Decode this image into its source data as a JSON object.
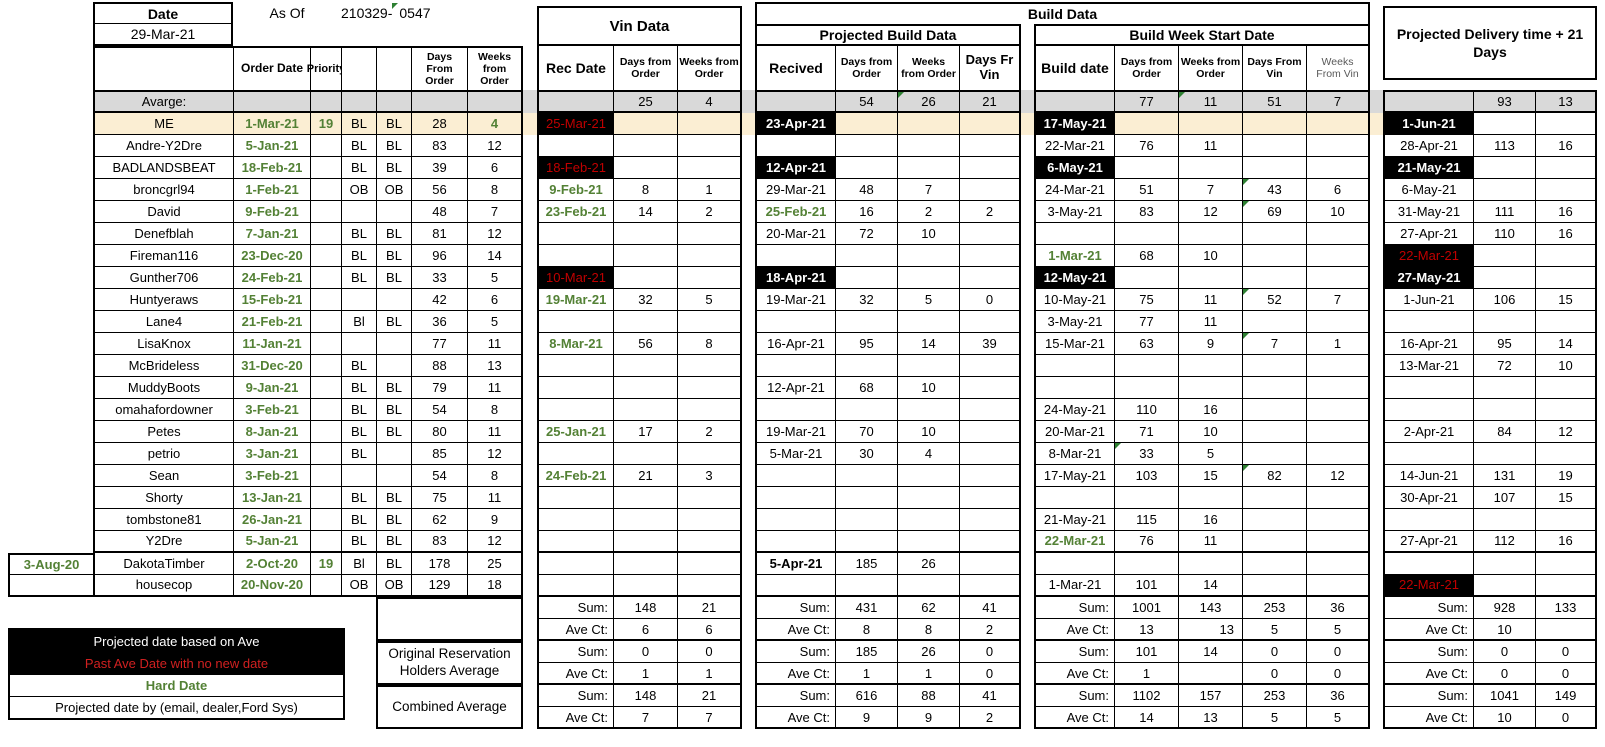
{
  "meta": {
    "date_label": "Date",
    "date_value": "29-Mar-21",
    "as_of_label": "As Of",
    "as_of_value": "210329-",
    "as_of_frag": "0547"
  },
  "titles": {
    "vin": "Vin Data",
    "build": "Build Data",
    "projected_build": "Projected Build Data",
    "build_week": "Build Week Start Date",
    "delivery": "Projected Delivery time + 21 Days"
  },
  "col_headers": {
    "order_date": "Order Date",
    "priority": "Priority",
    "days_from_order": "Days From Order",
    "weeks_from_order": "Weeks from Order",
    "rec_date": "Rec Date",
    "vin_days": "Days from Order",
    "vin_weeks": "Weeks from Order",
    "recived": "Recived",
    "pb_days": "Days from Order",
    "pb_weeks": "Weeks from Order",
    "pb_dfv": "Days Fr Vin",
    "build_date": "Build date",
    "bw_days": "Days from Order",
    "bw_weeks": "Weeks from Order",
    "bw_dv": "Days From Vin",
    "bw_wv": "Weeks From Vin"
  },
  "average": {
    "label": "Avarge:",
    "vin_days": "25",
    "vin_weeks": "4",
    "pb_days": "54",
    "pb_weeks": "26",
    "pb_dfv": "21",
    "bw_days": "77",
    "bw_weeks": "11",
    "bw_dv": "51",
    "bw_wv": "7",
    "del_days": "93",
    "del_weeks": "13"
  },
  "colors": {
    "hard_date_green": "#538135",
    "past_date_red": "#c00000",
    "average_row_gray": "#d9d9d9",
    "highlight_tan": "#fbeed3",
    "projected_black": "#000000"
  },
  "rows": [
    {
      "hl": "tan",
      "left": "",
      "name": "ME",
      "order_date": "1-Mar-21",
      "priority": "19",
      "bl1": "BL",
      "bl2": "BL",
      "days": "28",
      "weeks": "4",
      "green": [
        "weeks"
      ],
      "rec": "25-Mar-21",
      "rec_s": "past",
      "vdays": "",
      "vweeks": "",
      "pb": "23-Apr-21",
      "pb_s": "ave",
      "pbdays": "",
      "pbweeks": "",
      "pbdfv": "",
      "bw": "17-May-21",
      "bw_s": "ave",
      "bwdays": "",
      "bwweeks": "",
      "bwdv": "",
      "bwwv": "",
      "del": "1-Jun-21",
      "del_s": "ave",
      "deldays": "",
      "delweeks": ""
    },
    {
      "left": "",
      "name": "Andre-Y2Dre",
      "order_date": "5-Jan-21",
      "priority": "",
      "bl1": "BL",
      "bl2": "BL",
      "days": "83",
      "weeks": "12",
      "rec": "",
      "vdays": "",
      "vweeks": "",
      "pb": "",
      "pbdays": "",
      "pbweeks": "",
      "pbdfv": "",
      "bw": "22-Mar-21",
      "bw_s": "plain",
      "bwdays": "76",
      "bwweeks": "11",
      "bwdv": "",
      "bwwv": "",
      "del": "28-Apr-21",
      "del_s": "plain",
      "deldays": "113",
      "delweeks": "16"
    },
    {
      "left": "",
      "name": "BADLANDSBEAT",
      "order_date": "18-Feb-21",
      "priority": "",
      "bl1": "BL",
      "bl2": "BL",
      "days": "39",
      "weeks": "6",
      "rec": "18-Feb-21",
      "rec_s": "past",
      "vdays": "",
      "vweeks": "",
      "pb": "12-Apr-21",
      "pb_s": "ave",
      "pbdays": "",
      "pbweeks": "",
      "pbdfv": "",
      "bw": "6-May-21",
      "bw_s": "ave",
      "bwdays": "",
      "bwweeks": "",
      "bwdv": "",
      "bwwv": "",
      "del": "21-May-21",
      "del_s": "ave",
      "deldays": "",
      "delweeks": ""
    },
    {
      "left": "",
      "name": "broncgrl94",
      "order_date": "1-Feb-21",
      "priority": "",
      "bl1": "OB",
      "bl2": "OB",
      "days": "56",
      "weeks": "8",
      "rec": "9-Feb-21",
      "rec_s": "hard",
      "vdays": "8",
      "vweeks": "1",
      "pb": "29-Mar-21",
      "pb_s": "plain",
      "pbdays": "48",
      "pbweeks": "7",
      "pbdfv": "",
      "bw": "24-Mar-21",
      "bw_s": "plain",
      "bwdays": "51",
      "bwweeks": "7",
      "bwdv": "43",
      "bwwv": "6",
      "flags": [
        "bwdv"
      ],
      "del": "6-May-21",
      "del_s": "plain",
      "deldays": "",
      "delweeks": ""
    },
    {
      "left": "",
      "name": "David",
      "order_date": "9-Feb-21",
      "priority": "",
      "bl1": "",
      "bl2": "",
      "days": "48",
      "weeks": "7",
      "rec": "23-Feb-21",
      "rec_s": "hard",
      "vdays": "14",
      "vweeks": "2",
      "pb": "25-Feb-21",
      "pb_s": "hard",
      "pbdays": "16",
      "pbweeks": "2",
      "pbdfv": "2",
      "bw": "3-May-21",
      "bw_s": "plain",
      "bwdays": "83",
      "bwweeks": "12",
      "bwdv": "69",
      "bwwv": "10",
      "flags": [
        "bwdv"
      ],
      "del": "31-May-21",
      "del_s": "plain",
      "deldays": "111",
      "delweeks": "16"
    },
    {
      "left": "",
      "name": "Denefblah",
      "order_date": "7-Jan-21",
      "priority": "",
      "bl1": "BL",
      "bl2": "BL",
      "days": "81",
      "weeks": "12",
      "rec": "",
      "vdays": "",
      "vweeks": "",
      "pb": "20-Mar-21",
      "pb_s": "plain",
      "pbdays": "72",
      "pbweeks": "10",
      "pbdfv": "",
      "bw": "",
      "bwdays": "",
      "bwweeks": "",
      "bwdv": "",
      "bwwv": "",
      "del": "27-Apr-21",
      "del_s": "plain",
      "deldays": "110",
      "delweeks": "16"
    },
    {
      "left": "",
      "name": "Fireman116",
      "order_date": "23-Dec-20",
      "priority": "",
      "bl1": "BL",
      "bl2": "BL",
      "days": "96",
      "weeks": "14",
      "rec": "",
      "vdays": "",
      "vweeks": "",
      "pb": "",
      "pbdays": "",
      "pbweeks": "",
      "pbdfv": "",
      "bw": "1-Mar-21",
      "bw_s": "hard",
      "bwdays": "68",
      "bwweeks": "10",
      "bwdv": "",
      "bwwv": "",
      "del": "22-Mar-21",
      "del_s": "past",
      "deldays": "",
      "delweeks": ""
    },
    {
      "left": "",
      "name": "Gunther706",
      "order_date": "24-Feb-21",
      "priority": "",
      "bl1": "BL",
      "bl2": "BL",
      "days": "33",
      "weeks": "5",
      "rec": "10-Mar-21",
      "rec_s": "past",
      "vdays": "",
      "vweeks": "",
      "pb": "18-Apr-21",
      "pb_s": "ave",
      "pbdays": "",
      "pbweeks": "",
      "pbdfv": "",
      "bw": "12-May-21",
      "bw_s": "ave",
      "bwdays": "",
      "bwweeks": "",
      "bwdv": "",
      "bwwv": "",
      "del": "27-May-21",
      "del_s": "ave",
      "deldays": "",
      "delweeks": ""
    },
    {
      "left": "",
      "name": "Huntyeraws",
      "order_date": "15-Feb-21",
      "priority": "",
      "bl1": "",
      "bl2": "",
      "days": "42",
      "weeks": "6",
      "rec": "19-Mar-21",
      "rec_s": "hard",
      "vdays": "32",
      "vweeks": "5",
      "pb": "19-Mar-21",
      "pb_s": "plain",
      "pbdays": "32",
      "pbweeks": "5",
      "pbdfv": "0",
      "bw": "10-May-21",
      "bw_s": "plain",
      "bwdays": "75",
      "bwweeks": "11",
      "bwdv": "52",
      "bwwv": "7",
      "flags": [
        "bwdv"
      ],
      "del": "1-Jun-21",
      "del_s": "plain",
      "deldays": "106",
      "delweeks": "15"
    },
    {
      "left": "",
      "name": "Lane4",
      "order_date": "21-Feb-21",
      "priority": "",
      "bl1": "Bl",
      "bl2": "BL",
      "days": "36",
      "weeks": "5",
      "rec": "",
      "vdays": "",
      "vweeks": "",
      "pb": "",
      "pbdays": "",
      "pbweeks": "",
      "pbdfv": "",
      "bw": "3-May-21",
      "bw_s": "plain",
      "bwdays": "77",
      "bwweeks": "11",
      "bwdv": "",
      "bwwv": "",
      "del": "",
      "deldays": "",
      "delweeks": ""
    },
    {
      "left": "",
      "name": "LisaKnox",
      "order_date": "11-Jan-21",
      "priority": "",
      "bl1": "",
      "bl2": "",
      "days": "77",
      "weeks": "11",
      "rec": "8-Mar-21",
      "rec_s": "hard",
      "vdays": "56",
      "vweeks": "8",
      "pb": "16-Apr-21",
      "pb_s": "plain",
      "pbdays": "95",
      "pbweeks": "14",
      "pbdfv": "39",
      "bw": "15-Mar-21",
      "bw_s": "plain",
      "bwdays": "63",
      "bwweeks": "9",
      "bwdv": "7",
      "bwwv": "1",
      "flags": [
        "bwdv"
      ],
      "del": "16-Apr-21",
      "del_s": "plain",
      "deldays": "95",
      "delweeks": "14"
    },
    {
      "left": "",
      "name": "McBrideless",
      "order_date": "31-Dec-20",
      "priority": "",
      "bl1": "BL",
      "bl2": "",
      "days": "88",
      "weeks": "13",
      "rec": "",
      "vdays": "",
      "vweeks": "",
      "pb": "",
      "pbdays": "",
      "pbweeks": "",
      "pbdfv": "",
      "bw": "",
      "bwdays": "",
      "bwweeks": "",
      "bwdv": "",
      "bwwv": "",
      "del": "13-Mar-21",
      "del_s": "plain",
      "deldays": "72",
      "delweeks": "10"
    },
    {
      "left": "",
      "name": "MuddyBoots",
      "order_date": "9-Jan-21",
      "priority": "",
      "bl1": "BL",
      "bl2": "BL",
      "days": "79",
      "weeks": "11",
      "rec": "",
      "vdays": "",
      "vweeks": "",
      "pb": "12-Apr-21",
      "pb_s": "plain",
      "pbdays": "68",
      "pbweeks": "10",
      "pbdfv": "",
      "bw": "",
      "bwdays": "",
      "bwweeks": "",
      "bwdv": "",
      "bwwv": "",
      "del": "",
      "deldays": "",
      "delweeks": ""
    },
    {
      "left": "",
      "name": "omahafordowner",
      "order_date": "3-Feb-21",
      "priority": "",
      "bl1": "BL",
      "bl2": "BL",
      "days": "54",
      "weeks": "8",
      "rec": "",
      "vdays": "",
      "vweeks": "",
      "pb": "",
      "pbdays": "",
      "pbweeks": "",
      "pbdfv": "",
      "bw": "24-May-21",
      "bw_s": "plain",
      "bwdays": "110",
      "bwweeks": "16",
      "bwdv": "",
      "bwwv": "",
      "del": "",
      "deldays": "",
      "delweeks": ""
    },
    {
      "left": "",
      "name": "Petes",
      "order_date": "8-Jan-21",
      "priority": "",
      "bl1": "BL",
      "bl2": "BL",
      "days": "80",
      "weeks": "11",
      "rec": "25-Jan-21",
      "rec_s": "hard",
      "vdays": "17",
      "vweeks": "2",
      "pb": "19-Mar-21",
      "pb_s": "plain",
      "pbdays": "70",
      "pbweeks": "10",
      "pbdfv": "",
      "bw": "20-Mar-21",
      "bw_s": "plain",
      "bwdays": "71",
      "bwweeks": "10",
      "bwdv": "",
      "bwwv": "",
      "del": "2-Apr-21",
      "del_s": "plain",
      "deldays": "84",
      "delweeks": "12"
    },
    {
      "left": "",
      "name": "petrio",
      "order_date": "3-Jan-21",
      "priority": "",
      "bl1": "BL",
      "bl2": "",
      "days": "85",
      "weeks": "12",
      "rec": "",
      "vdays": "",
      "vweeks": "",
      "pb": "5-Mar-21",
      "pb_s": "plain",
      "pbdays": "30",
      "pbweeks": "4",
      "pbdfv": "",
      "bw": "8-Mar-21",
      "bw_s": "plain",
      "bwdays": "33",
      "bwweeks": "5",
      "bwdv": "",
      "bwwv": "",
      "flags": [
        "bwdays"
      ],
      "del": "",
      "deldays": "",
      "delweeks": ""
    },
    {
      "left": "",
      "name": "Sean",
      "order_date": "3-Feb-21",
      "priority": "",
      "bl1": "",
      "bl2": "",
      "days": "54",
      "weeks": "8",
      "rec": "24-Feb-21",
      "rec_s": "hard",
      "vdays": "21",
      "vweeks": "3",
      "pb": "",
      "pbdays": "",
      "pbweeks": "",
      "pbdfv": "",
      "bw": "17-May-21",
      "bw_s": "plain",
      "bwdays": "103",
      "bwweeks": "15",
      "bwdv": "82",
      "bwwv": "12",
      "flags": [
        "bwdv"
      ],
      "del": "14-Jun-21",
      "del_s": "plain",
      "deldays": "131",
      "delweeks": "19"
    },
    {
      "left": "",
      "name": "Shorty",
      "order_date": "13-Jan-21",
      "priority": "",
      "bl1": "BL",
      "bl2": "BL",
      "days": "75",
      "weeks": "11",
      "rec": "",
      "vdays": "",
      "vweeks": "",
      "pb": "",
      "pbdays": "",
      "pbweeks": "",
      "pbdfv": "",
      "bw": "",
      "bwdays": "",
      "bwweeks": "",
      "bwdv": "",
      "bwwv": "",
      "del": "30-Apr-21",
      "del_s": "plain",
      "deldays": "107",
      "delweeks": "15"
    },
    {
      "left": "",
      "name": "tombstone81",
      "order_date": "26-Jan-21",
      "priority": "",
      "bl1": "BL",
      "bl2": "BL",
      "days": "62",
      "weeks": "9",
      "rec": "",
      "vdays": "",
      "vweeks": "",
      "pb": "",
      "pbdays": "",
      "pbweeks": "",
      "pbdfv": "",
      "bw": "21-May-21",
      "bw_s": "plain",
      "bwdays": "115",
      "bwweeks": "16",
      "bwdv": "",
      "bwwv": "",
      "del": "",
      "deldays": "",
      "delweeks": ""
    },
    {
      "left": "",
      "name": "Y2Dre",
      "order_date": "5-Jan-21",
      "priority": "",
      "bl1": "BL",
      "bl2": "BL",
      "days": "83",
      "weeks": "12",
      "tb": true,
      "rec": "",
      "vdays": "",
      "vweeks": "",
      "pb": "",
      "pbdays": "",
      "pbweeks": "",
      "pbdfv": "",
      "bw": "22-Mar-21",
      "bw_s": "hard",
      "bwdays": "76",
      "bwweeks": "11",
      "bwdv": "",
      "bwwv": "",
      "del": "27-Apr-21",
      "del_s": "plain",
      "deldays": "112",
      "delweeks": "16"
    },
    {
      "left": "3-Aug-20",
      "left_box": true,
      "left_top": true,
      "name": "DakotaTimber",
      "order_date": "2-Oct-20",
      "priority": "19",
      "bl1": "Bl",
      "bl2": "BL",
      "days": "178",
      "weeks": "25",
      "rec": "",
      "vdays": "",
      "vweeks": "",
      "pb": "5-Apr-21",
      "pb_s": "bold",
      "pbdays": "185",
      "pbweeks": "26",
      "pbdfv": "",
      "bw": "",
      "bwdays": "",
      "bwweeks": "",
      "bwdv": "",
      "bwwv": "",
      "del": "",
      "deldays": "",
      "delweeks": ""
    },
    {
      "left": "",
      "left_box": true,
      "name": "housecop",
      "order_date": "20-Nov-20",
      "priority": "",
      "bl1": "OB",
      "bl2": "OB",
      "days": "129",
      "weeks": "18",
      "tb": true,
      "rec": "",
      "vdays": "",
      "vweeks": "",
      "pb": "",
      "pbdays": "",
      "pbweeks": "",
      "pbdfv": "",
      "bw": "1-Mar-21",
      "bw_s": "plain",
      "bwdays": "101",
      "bwweeks": "14",
      "bwdv": "",
      "bwwv": "",
      "del": "22-Mar-21",
      "del_s": "past",
      "deldays": "",
      "delweeks": ""
    }
  ],
  "summary": {
    "groups": [
      {
        "label": "",
        "rows": [
          {
            "label": "Sum:",
            "vin": [
              "148",
              "21"
            ],
            "pb": [
              "431",
              "62",
              "41"
            ],
            "bw": [
              "1001",
              "143",
              "253",
              "36"
            ],
            "del": [
              "928",
              "133"
            ]
          },
          {
            "label": "Ave Ct:",
            "vin": [
              "6",
              "6"
            ],
            "pb": [
              "8",
              "8",
              "2"
            ],
            "bw": [
              "13",
              "13",
              "5",
              "5"
            ],
            "del": [
              "10",
              ""
            ]
          }
        ]
      },
      {
        "label": "Original Reservation Holders Average",
        "rows": [
          {
            "label": "Sum:",
            "vin": [
              "0",
              "0"
            ],
            "pb": [
              "185",
              "26",
              "0"
            ],
            "bw": [
              "101",
              "14",
              "0",
              "0"
            ],
            "del": [
              "0",
              "0"
            ]
          },
          {
            "label": "Ave Ct:",
            "vin": [
              "1",
              "1"
            ],
            "pb": [
              "1",
              "1",
              "0"
            ],
            "bw": [
              "1",
              "",
              "0",
              "0"
            ],
            "del": [
              "0",
              "0"
            ]
          }
        ]
      },
      {
        "label": "Combined Average",
        "rows": [
          {
            "label": "Sum:",
            "vin": [
              "148",
              "21"
            ],
            "pb": [
              "616",
              "88",
              "41"
            ],
            "bw": [
              "1102",
              "157",
              "253",
              "36"
            ],
            "del": [
              "1041",
              "149"
            ]
          },
          {
            "label": "Ave Ct:",
            "vin": [
              "7",
              "7"
            ],
            "pb": [
              "9",
              "9",
              "2"
            ],
            "bw": [
              "14",
              "13",
              "5",
              "5"
            ],
            "del": [
              "10",
              "0"
            ]
          }
        ]
      }
    ]
  },
  "legend": {
    "items": [
      {
        "label": "Projected date based on Ave",
        "style": "ave"
      },
      {
        "label": "Past Ave Date with no new date",
        "style": "past"
      },
      {
        "label": "Hard Date",
        "style": "hard"
      },
      {
        "label": "Projected date by  (email, dealer,Ford Sys)",
        "style": "plain"
      }
    ]
  }
}
